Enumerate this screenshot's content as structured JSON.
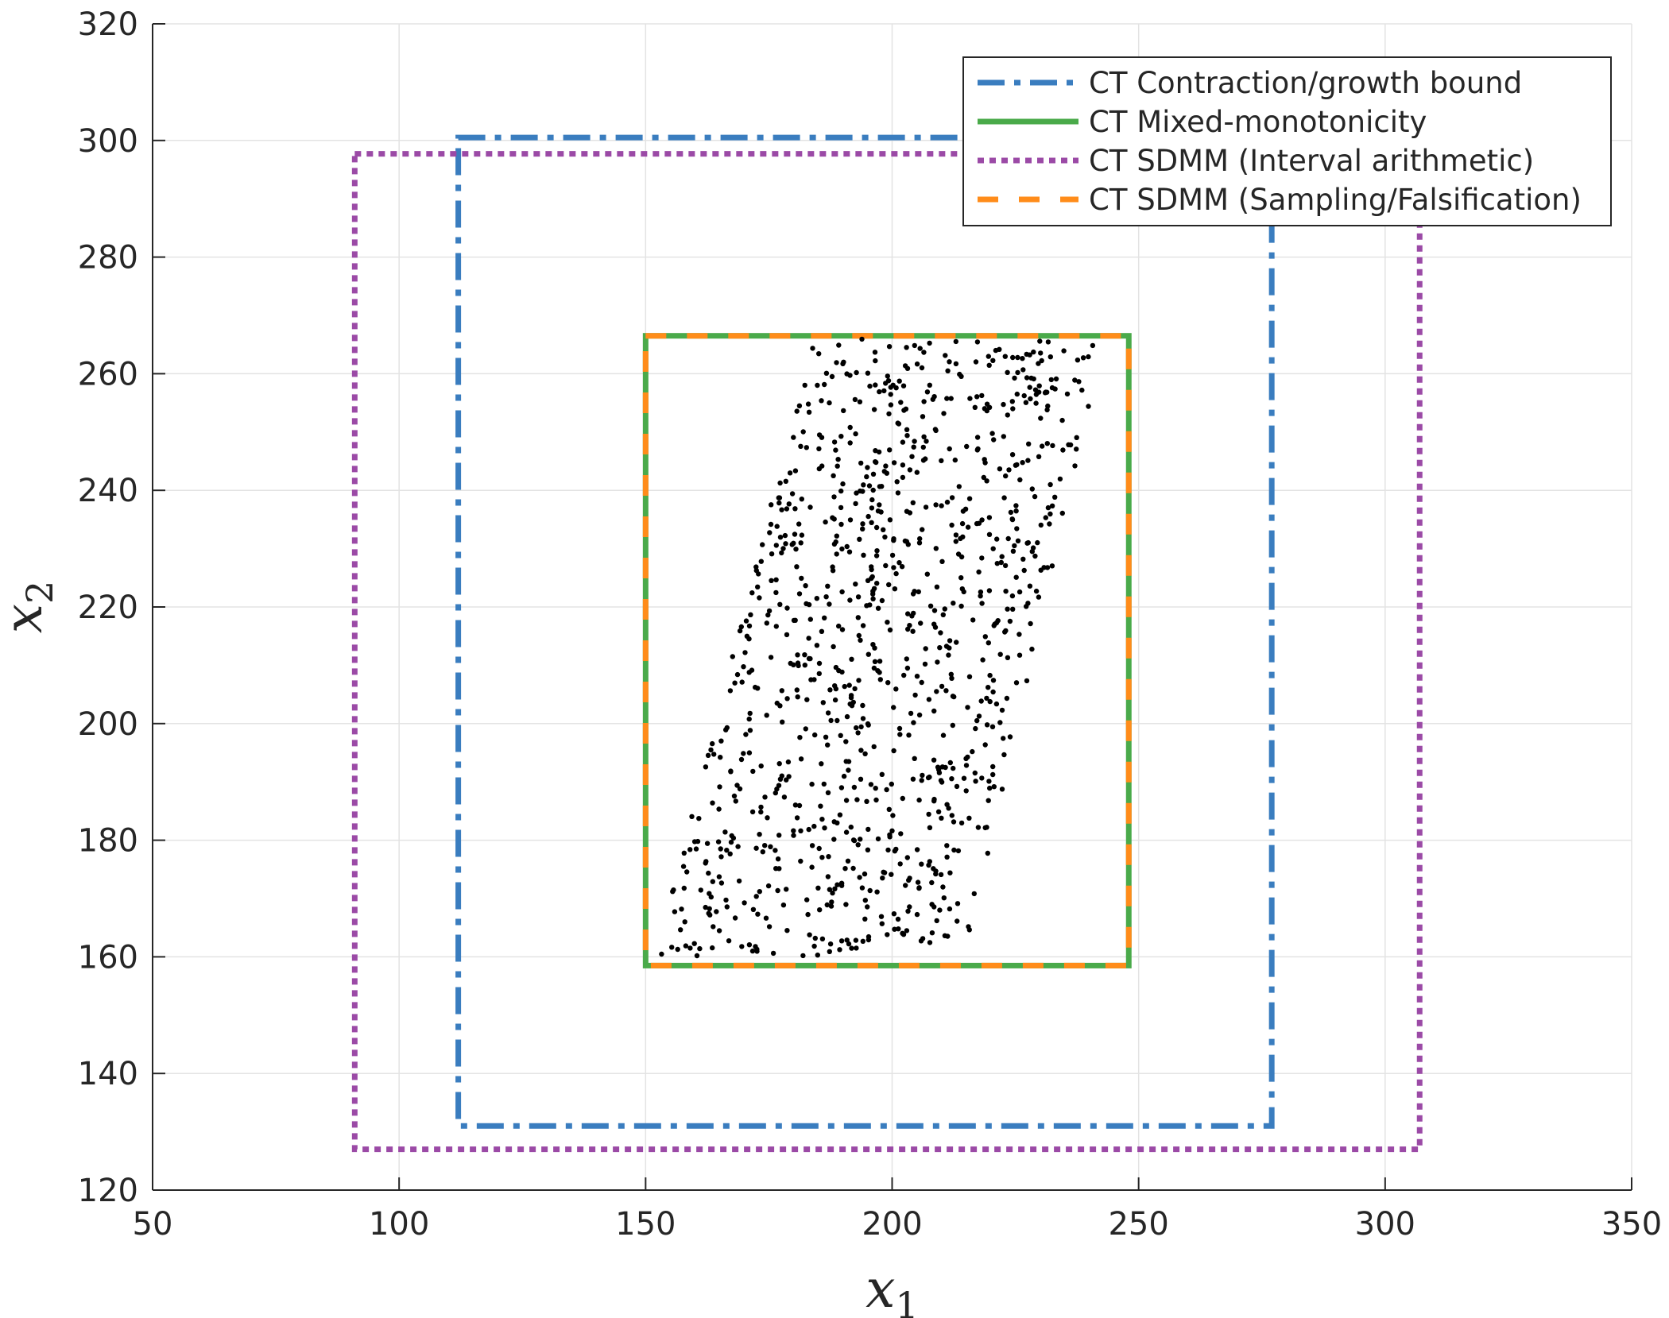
{
  "chart_data": {
    "type": "scatter",
    "xlabel": "x",
    "xlabel_sub": "1",
    "ylabel": "x",
    "ylabel_sub": "2",
    "xlim": [
      50,
      350
    ],
    "ylim": [
      120,
      320
    ],
    "xticks": [
      50,
      100,
      150,
      200,
      250,
      300,
      350
    ],
    "yticks": [
      120,
      140,
      160,
      180,
      200,
      220,
      240,
      260,
      280,
      300,
      320
    ],
    "grid": true,
    "legend_position": "top-right",
    "series": [
      {
        "name": "CT Contraction/growth bound",
        "kind": "rect",
        "style": "dashdot",
        "color": "#3a7dbf",
        "x_range": [
          112,
          277
        ],
        "y_range": [
          131,
          300.5
        ]
      },
      {
        "name": "CT Mixed-monotonicity",
        "kind": "rect",
        "style": "solid",
        "color": "#4aaa4a",
        "x_range": [
          150,
          248
        ],
        "y_range": [
          158.5,
          266.5
        ]
      },
      {
        "name": "CT SDMM (Interval arithmetic)",
        "kind": "rect",
        "style": "dotted",
        "color": "#9b4aa6",
        "x_range": [
          91,
          307
        ],
        "y_range": [
          127,
          297.7
        ]
      },
      {
        "name": "CT SDMM (Sampling/Falsification)",
        "kind": "rect",
        "style": "dashed",
        "color": "#ff8c1a",
        "x_range": [
          150,
          248
        ],
        "y_range": [
          158.5,
          266.5
        ]
      }
    ],
    "samples": {
      "color": "#000000",
      "count": 1000,
      "description_region": {
        "y_range": [
          160,
          266
        ],
        "x_left_at_ymin": 152,
        "x_left_at_ymax": 184,
        "x_right_at_ymin": 215,
        "x_right_at_ymax": 243
      }
    }
  }
}
